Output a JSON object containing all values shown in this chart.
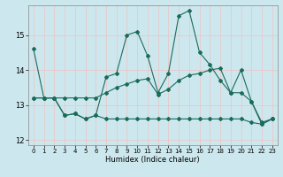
{
  "xlabel": "Humidex (Indice chaleur)",
  "x": [
    0,
    1,
    2,
    3,
    4,
    5,
    6,
    7,
    8,
    9,
    10,
    11,
    12,
    13,
    14,
    15,
    16,
    17,
    18,
    19,
    20,
    21,
    22,
    23
  ],
  "series1": [
    14.6,
    13.2,
    13.2,
    12.7,
    12.75,
    12.6,
    12.7,
    13.8,
    13.9,
    15.0,
    15.1,
    14.4,
    13.35,
    13.9,
    15.55,
    15.7,
    14.5,
    14.15,
    13.7,
    13.35,
    14.0,
    13.1,
    12.45,
    12.6
  ],
  "series2": [
    13.2,
    13.2,
    13.2,
    13.2,
    13.2,
    13.2,
    13.2,
    13.35,
    13.5,
    13.6,
    13.7,
    13.75,
    13.3,
    13.45,
    13.7,
    13.85,
    13.9,
    14.0,
    14.05,
    13.35,
    13.35,
    13.1,
    12.5,
    12.6
  ],
  "series3": [
    13.2,
    13.2,
    13.2,
    12.7,
    12.75,
    12.6,
    12.7,
    12.6,
    12.6,
    12.6,
    12.6,
    12.6,
    12.6,
    12.6,
    12.6,
    12.6,
    12.6,
    12.6,
    12.6,
    12.6,
    12.6,
    12.5,
    12.45,
    12.6
  ],
  "line_color": "#1a6b5a",
  "bg_color": "#cce8ee",
  "grid_color": "#e8c8c8",
  "ylim": [
    11.85,
    15.85
  ],
  "yticks": [
    12,
    13,
    14,
    15
  ],
  "xticks": [
    0,
    1,
    2,
    3,
    4,
    5,
    6,
    7,
    8,
    9,
    10,
    11,
    12,
    13,
    14,
    15,
    16,
    17,
    18,
    19,
    20,
    21,
    22,
    23
  ]
}
